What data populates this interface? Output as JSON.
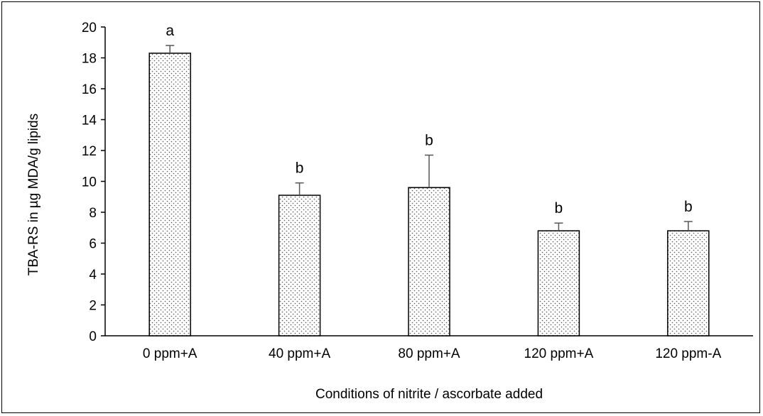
{
  "chart_data": {
    "type": "bar",
    "title": "",
    "xlabel": "Conditions of nitrite / ascorbate added",
    "ylabel": "TBA-RS in µg MDA/g lipids",
    "ylim": [
      0,
      20
    ],
    "yticks": [
      0,
      2,
      4,
      6,
      8,
      10,
      12,
      14,
      16,
      18,
      20
    ],
    "categories": [
      "0 ppm+A",
      "40 ppm+A",
      "80 ppm+A",
      "120 ppm+A",
      "120 ppm-A"
    ],
    "values": [
      18.3,
      9.1,
      9.6,
      6.8,
      6.8
    ],
    "error_plus": [
      0.5,
      0.8,
      2.1,
      0.5,
      0.6
    ],
    "significance_labels": [
      "a",
      "b",
      "b",
      "b",
      "b"
    ],
    "bar_pattern": "dotted",
    "grid": false,
    "legend": "none"
  },
  "colors": {
    "bar_fill": "#ffffff",
    "bar_dots": "#555555",
    "axis": "#000000",
    "error_bar": "#555555"
  }
}
